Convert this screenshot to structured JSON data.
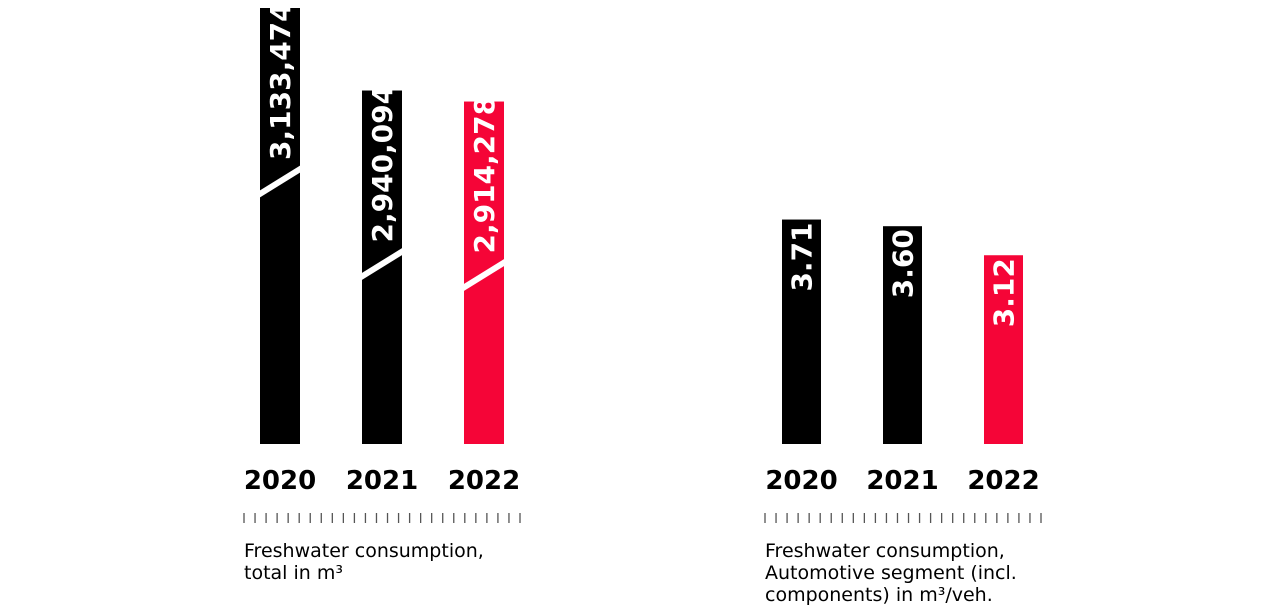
{
  "colors": {
    "accent": "#f50537",
    "default": "#000000",
    "label": "#ffffff"
  },
  "chart_data": [
    {
      "type": "bar",
      "categories": [
        "2020",
        "2021",
        "2022"
      ],
      "values": [
        3133474,
        2940094,
        2914278
      ],
      "value_labels": [
        "3,133,474",
        "2,940,094",
        "2,914,278"
      ],
      "highlight_index": 2,
      "axis_break": true,
      "caption_lines": [
        "Freshwater consumption,",
        "total in m³"
      ]
    },
    {
      "type": "bar",
      "categories": [
        "2020",
        "2021",
        "2022"
      ],
      "values": [
        3.71,
        3.6,
        3.12
      ],
      "value_labels": [
        "3.71",
        "3.60",
        "3.12"
      ],
      "highlight_index": 2,
      "axis_break": false,
      "caption_lines": [
        "Freshwater consumption,",
        "Automotive segment (incl.",
        "components) in m³/veh."
      ]
    }
  ]
}
